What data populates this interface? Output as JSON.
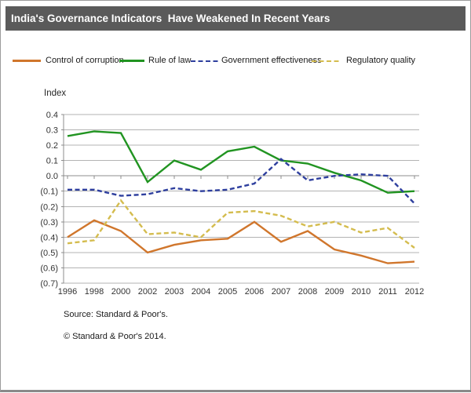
{
  "window": {
    "title": "India's Governance Indicators  Have Weakened In Recent Years"
  },
  "colors": {
    "title_bar_bg": "#5a5a5a",
    "title_text": "#ffffff",
    "grid": "#b3b3b3",
    "axis": "#8c8c8c",
    "tick_text": "#333333"
  },
  "chart_data": {
    "type": "line",
    "axis_title": "Index",
    "categories": [
      "1996",
      "1998",
      "2000",
      "2002",
      "2003",
      "2004",
      "2005",
      "2006",
      "2007",
      "2008",
      "2009",
      "2010",
      "2011",
      "2012"
    ],
    "ylim": [
      -0.7,
      0.4
    ],
    "y_tick_step": 0.1,
    "y_tick_labels": [
      "0.4",
      "0.3",
      "0.2",
      "0.1",
      "0.0",
      "(0.1)",
      "(0.2)",
      "(0.3)",
      "(0.4)",
      "(0.5)",
      "(0.6)",
      "(0.7)"
    ],
    "grid": true,
    "legend_position": "top",
    "series": [
      {
        "name": "Control of corruption",
        "color": "#d0762c",
        "dashed": false,
        "values": [
          -0.4,
          -0.29,
          -0.36,
          -0.5,
          -0.45,
          -0.42,
          -0.41,
          -0.3,
          -0.43,
          -0.36,
          -0.48,
          -0.52,
          -0.57,
          -0.56
        ]
      },
      {
        "name": "Rule of law",
        "color": "#219421",
        "dashed": false,
        "values": [
          0.26,
          0.29,
          0.28,
          -0.04,
          0.1,
          0.04,
          0.16,
          0.19,
          0.1,
          0.08,
          0.02,
          -0.03,
          -0.11,
          -0.1
        ]
      },
      {
        "name": "Government effectiveness",
        "color": "#2e3f9e",
        "dashed": true,
        "values": [
          -0.09,
          -0.09,
          -0.13,
          -0.12,
          -0.08,
          -0.1,
          -0.09,
          -0.05,
          0.11,
          -0.03,
          0.0,
          0.01,
          0.0,
          -0.18
        ]
      },
      {
        "name": "Regulatory quality",
        "color": "#d4bc4e",
        "dashed": true,
        "values": [
          -0.44,
          -0.42,
          -0.16,
          -0.38,
          -0.37,
          -0.4,
          -0.24,
          -0.23,
          -0.26,
          -0.33,
          -0.3,
          -0.37,
          -0.34,
          -0.47
        ]
      }
    ]
  },
  "footer": {
    "source": "Source: Standard & Poor's.",
    "copyright": "© Standard & Poor's 2014."
  }
}
